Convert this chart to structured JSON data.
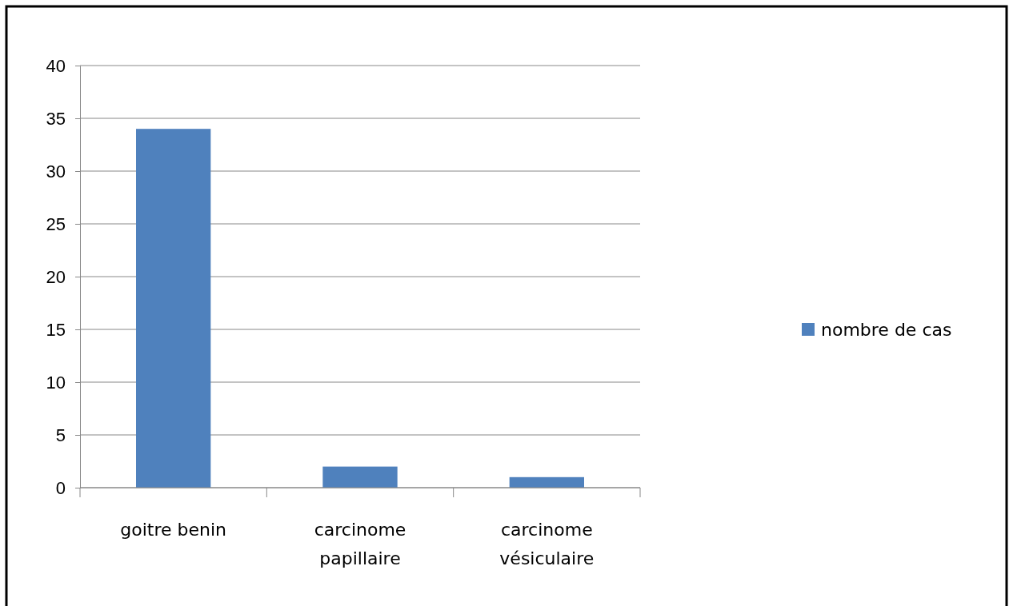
{
  "chart_data": {
    "type": "bar",
    "categories": [
      "goitre benin",
      "carcinome papillaire",
      "carcinome vésiculaire"
    ],
    "series": [
      {
        "name": "nombre de cas",
        "color": "#4f81bd",
        "values": [
          34,
          2,
          1
        ]
      }
    ],
    "ylim": [
      0,
      40
    ],
    "yticks": [
      0,
      5,
      10,
      15,
      20,
      25,
      30,
      35,
      40
    ],
    "grid": "y",
    "legend": "right"
  }
}
